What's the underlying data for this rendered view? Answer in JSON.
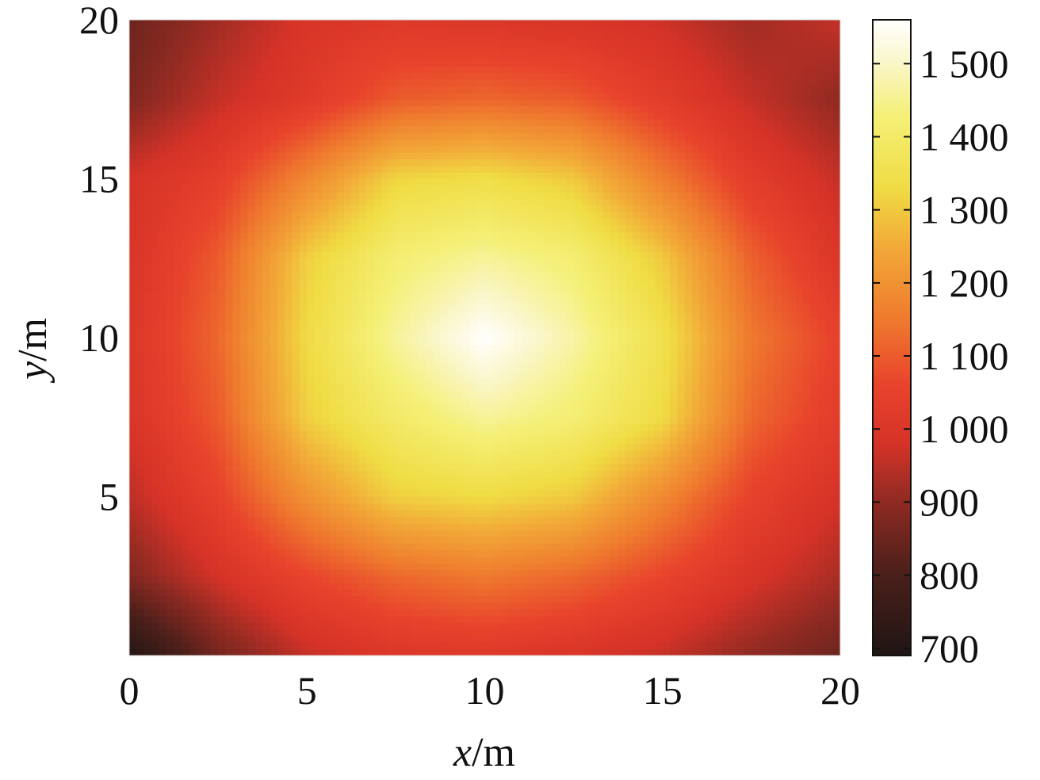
{
  "chart_data": {
    "type": "heatmap",
    "title": "",
    "xlabel": {
      "var": "x",
      "unit": "/m"
    },
    "ylabel": {
      "var": "y",
      "unit": "/m"
    },
    "xlim": [
      0,
      20
    ],
    "ylim": [
      0,
      20
    ],
    "x_ticks": [
      {
        "value": 0,
        "label": "0"
      },
      {
        "value": 5,
        "label": "5"
      },
      {
        "value": 10,
        "label": "10"
      },
      {
        "value": 15,
        "label": "15"
      },
      {
        "value": 20,
        "label": "20"
      }
    ],
    "y_ticks": [
      {
        "value": 5,
        "label": "5"
      },
      {
        "value": 10,
        "label": "10"
      },
      {
        "value": 15,
        "label": "15"
      },
      {
        "value": 20,
        "label": "20"
      }
    ],
    "colorbar": {
      "range": [
        690,
        1560
      ],
      "ticks": [
        {
          "value": 700,
          "label": "700"
        },
        {
          "value": 800,
          "label": "800"
        },
        {
          "value": 900,
          "label": "900"
        },
        {
          "value": 1000,
          "label": "1 000"
        },
        {
          "value": 1100,
          "label": "1 100"
        },
        {
          "value": 1200,
          "label": "1 200"
        },
        {
          "value": 1300,
          "label": "1 300"
        },
        {
          "value": 1400,
          "label": "1 400"
        },
        {
          "value": 1500,
          "label": "1 500"
        }
      ],
      "colormap": "hot",
      "colormap_stops": [
        {
          "value": 690,
          "color": "#1f1514"
        },
        {
          "value": 800,
          "color": "#4a1f1a"
        },
        {
          "value": 900,
          "color": "#8e2a22"
        },
        {
          "value": 980,
          "color": "#d63328"
        },
        {
          "value": 1060,
          "color": "#e8432c"
        },
        {
          "value": 1150,
          "color": "#ef7a2e"
        },
        {
          "value": 1250,
          "color": "#f2aa38"
        },
        {
          "value": 1330,
          "color": "#f0dc44"
        },
        {
          "value": 1430,
          "color": "#f5f078"
        },
        {
          "value": 1500,
          "color": "#faf6c8"
        },
        {
          "value": 1560,
          "color": "#ffffff"
        }
      ]
    },
    "field": {
      "x": [
        0,
        2.5,
        5,
        7.5,
        10,
        12.5,
        15,
        17.5,
        20
      ],
      "y": [
        0,
        2.5,
        5,
        7.5,
        10,
        12.5,
        15,
        17.5,
        20
      ],
      "z": [
        [
          700,
          860,
          960,
          1000,
          1010,
          990,
          960,
          900,
          850
        ],
        [
          880,
          980,
          1060,
          1120,
          1150,
          1120,
          1060,
          990,
          930
        ],
        [
          950,
          1050,
          1200,
          1310,
          1330,
          1300,
          1180,
          1050,
          980
        ],
        [
          990,
          1100,
          1310,
          1400,
          1460,
          1420,
          1330,
          1120,
          1030
        ],
        [
          1000,
          1120,
          1330,
          1460,
          1560,
          1470,
          1350,
          1150,
          1050
        ],
        [
          990,
          1100,
          1310,
          1420,
          1460,
          1420,
          1300,
          1110,
          1000
        ],
        [
          980,
          1040,
          1180,
          1320,
          1340,
          1300,
          1160,
          1030,
          960
        ],
        [
          880,
          960,
          1020,
          1100,
          1120,
          1100,
          1030,
          960,
          900
        ],
        [
          850,
          920,
          990,
          1010,
          1000,
          990,
          970,
          920,
          960
        ]
      ]
    }
  }
}
